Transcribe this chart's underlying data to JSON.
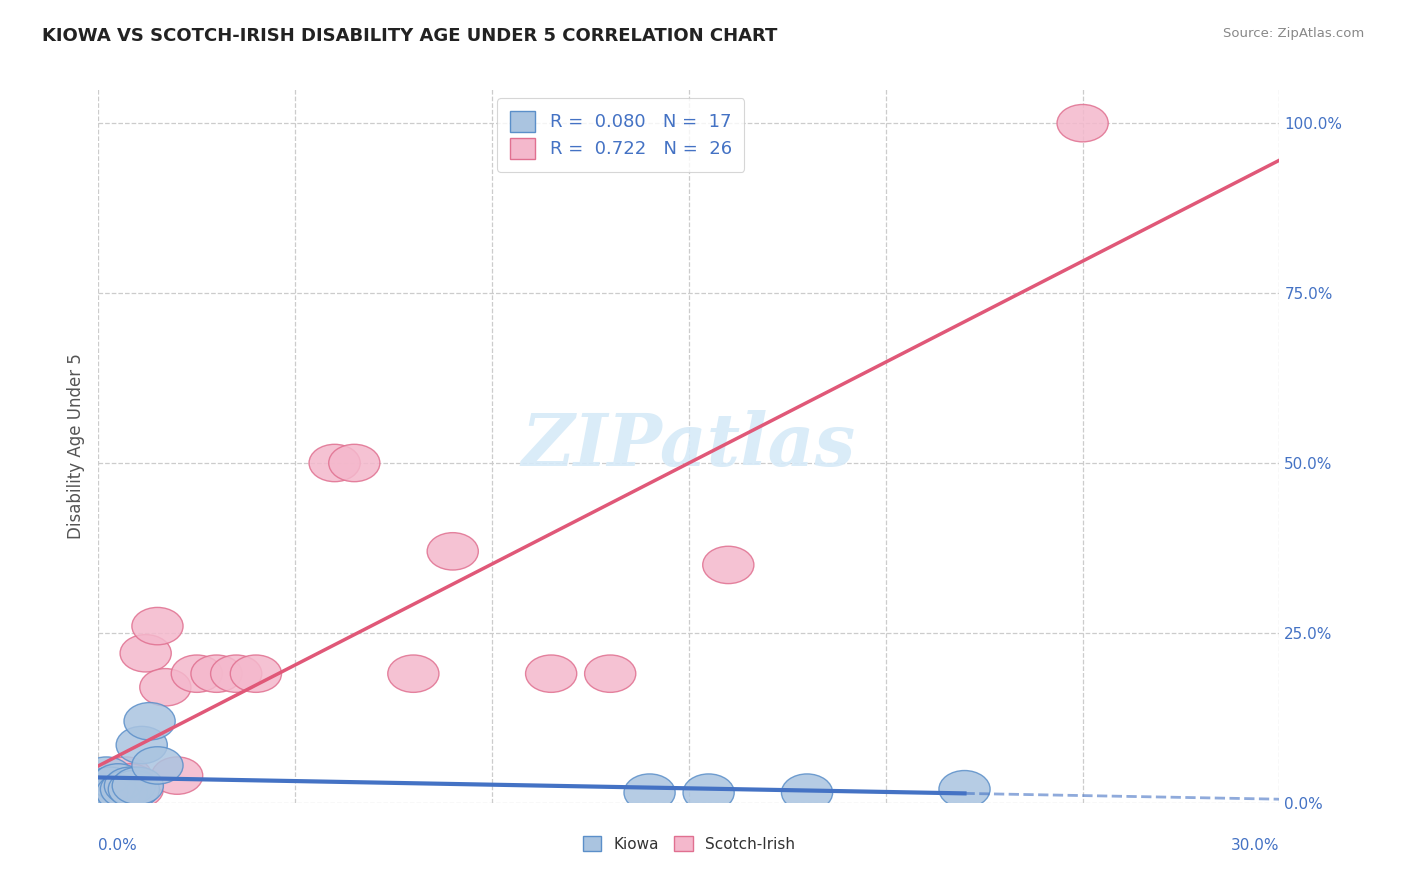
{
  "title": "KIOWA VS SCOTCH-IRISH DISABILITY AGE UNDER 5 CORRELATION CHART",
  "source": "Source: ZipAtlas.com",
  "ylabel": "Disability Age Under 5",
  "kiowa_R": 0.08,
  "kiowa_N": 17,
  "scotchirish_R": 0.722,
  "scotchirish_N": 26,
  "kiowa_color": "#aac4e0",
  "kiowa_edge_color": "#5b8fc9",
  "kiowa_line_color": "#4472c4",
  "scotchirish_color": "#f4b8cc",
  "scotchirish_edge_color": "#e07090",
  "scotchirish_line_color": "#e05878",
  "background_color": "#ffffff",
  "grid_color": "#cccccc",
  "watermark_color": "#d6eaf8",
  "title_color": "#222222",
  "source_color": "#888888",
  "axis_label_color": "#4472c4",
  "ylabel_color": "#555555",
  "legend_r_color": "#4472c4",
  "legend_n_color": "#4472c4",
  "xlim": [
    0.0,
    0.3
  ],
  "ylim": [
    0.0,
    1.05
  ],
  "kiowa_x": [
    0.001,
    0.002,
    0.003,
    0.004,
    0.005,
    0.006,
    0.007,
    0.008,
    0.009,
    0.01,
    0.011,
    0.013,
    0.015,
    0.14,
    0.155,
    0.18,
    0.22
  ],
  "kiowa_y": [
    0.015,
    0.04,
    0.025,
    0.01,
    0.03,
    0.015,
    0.02,
    0.025,
    0.02,
    0.025,
    0.085,
    0.12,
    0.055,
    0.015,
    0.015,
    0.015,
    0.02
  ],
  "scotchirish_x": [
    0.001,
    0.002,
    0.003,
    0.004,
    0.005,
    0.006,
    0.007,
    0.008,
    0.009,
    0.01,
    0.012,
    0.015,
    0.017,
    0.02,
    0.025,
    0.03,
    0.035,
    0.04,
    0.06,
    0.065,
    0.08,
    0.09,
    0.115,
    0.13,
    0.16,
    0.25
  ],
  "scotchirish_y": [
    0.015,
    0.01,
    0.02,
    0.02,
    0.03,
    0.025,
    0.04,
    0.03,
    0.025,
    0.02,
    0.22,
    0.26,
    0.17,
    0.04,
    0.19,
    0.19,
    0.19,
    0.19,
    0.5,
    0.5,
    0.19,
    0.37,
    0.19,
    0.19,
    0.35,
    1.0
  ]
}
